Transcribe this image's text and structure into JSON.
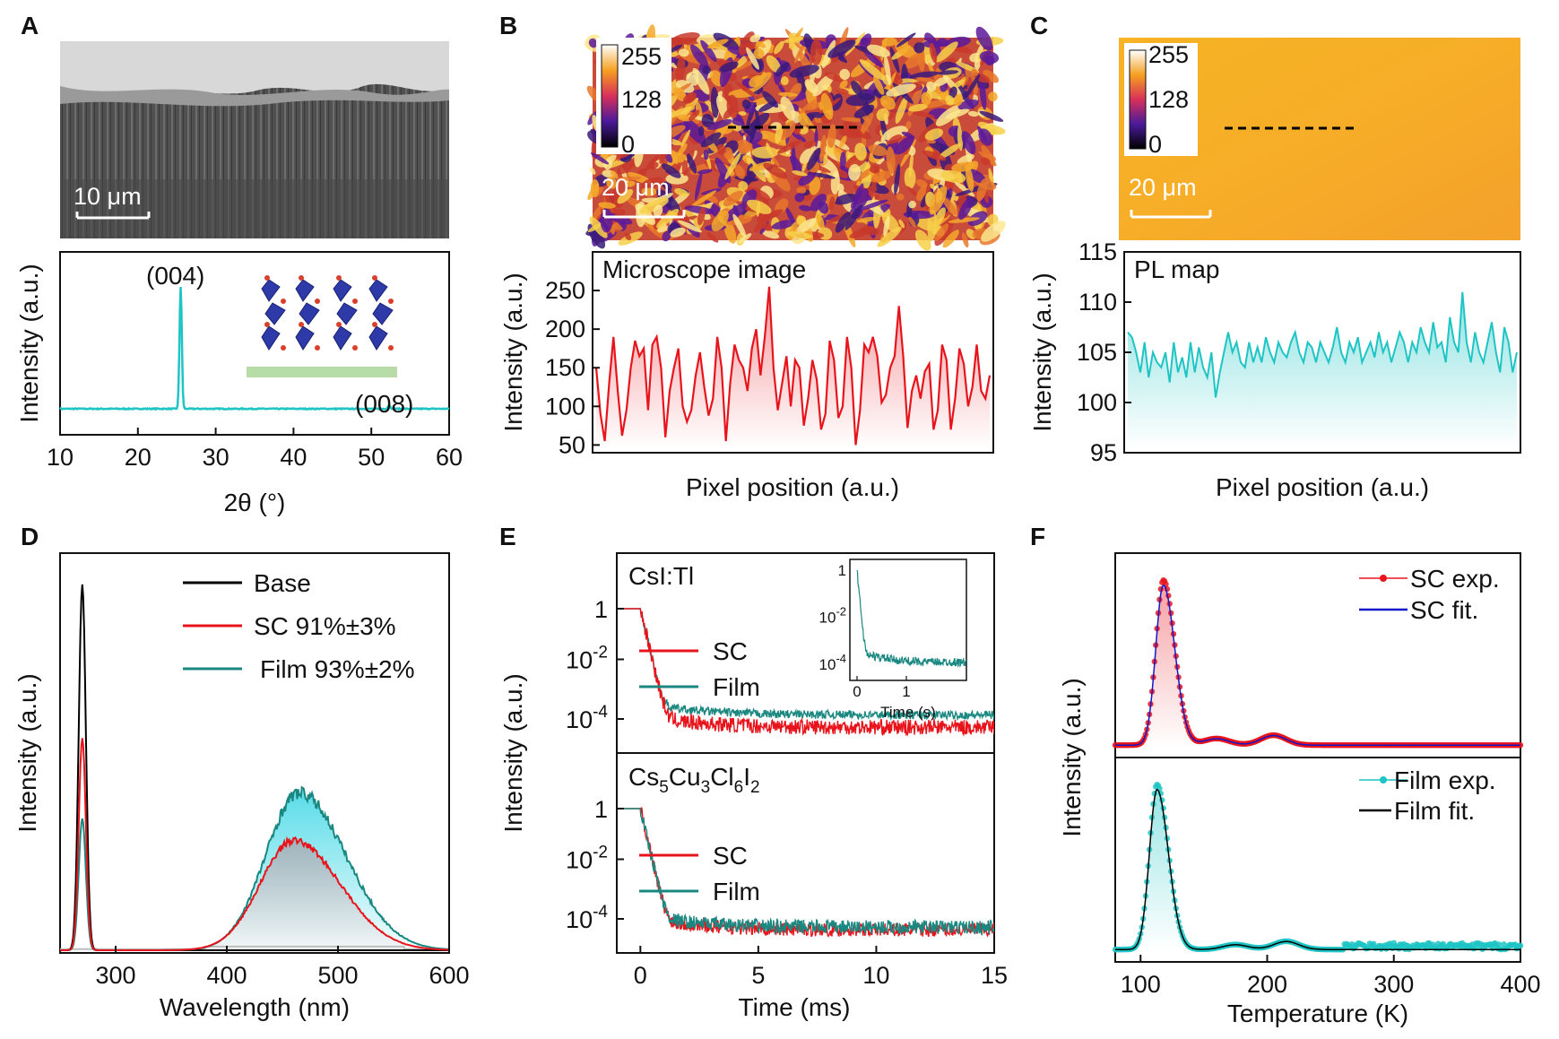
{
  "colors": {
    "cyan": "#1fc4c4",
    "red": "#e8141c",
    "teal": "#1a8880",
    "black": "#000000",
    "blue": "#1616c8",
    "gray": "#bdbdbd"
  },
  "chart_data": [
    {
      "id": "A",
      "panel_label": "A",
      "type": "line",
      "image": {
        "kind": "SEM cross-section",
        "scale_bar": "10 μm"
      },
      "inset": {
        "kind": "crystal-structure schematic"
      },
      "xlabel": "2θ (°)",
      "ylabel": "Intensity (a.u.)",
      "xlim": [
        10,
        60
      ],
      "xticks": [
        "10",
        "20",
        "30",
        "40",
        "50",
        "60"
      ],
      "peaks": [
        {
          "label": "(004)",
          "x": 25.5,
          "relative_height": 1.0
        },
        {
          "label": "(008)",
          "x": 52.3,
          "relative_height": 0.03
        }
      ],
      "series": [
        {
          "color": "#1fc4c4",
          "baseline": 0.0
        }
      ]
    },
    {
      "id": "B",
      "panel_label": "B",
      "type": "line",
      "image": {
        "kind": "microscope image (false color)",
        "scale_bar": "20 μm",
        "colorbar_ticks": [
          "255",
          "128",
          "0"
        ]
      },
      "annotation": "Microscope image",
      "xlabel": "Pixel position (a.u.)",
      "ylabel": "Intensity (a.u.)",
      "ylim": [
        40,
        300
      ],
      "yticks": [
        "50",
        "100",
        "150",
        "200",
        "250"
      ],
      "series": [
        {
          "color": "#e8141c",
          "values": [
            150,
            90,
            55,
            130,
            190,
            120,
            62,
            95,
            150,
            185,
            165,
            175,
            95,
            180,
            190,
            150,
            60,
            120,
            150,
            175,
            100,
            80,
            95,
            140,
            170,
            125,
            88,
            110,
            190,
            150,
            55,
            130,
            180,
            160,
            150,
            120,
            175,
            200,
            140,
            190,
            255,
            150,
            95,
            130,
            165,
            100,
            160,
            150,
            75,
            110,
            160,
            135,
            70,
            90,
            185,
            160,
            85,
            100,
            190,
            150,
            50,
            95,
            180,
            170,
            190,
            165,
            105,
            115,
            150,
            165,
            230,
            165,
            72,
            120,
            140,
            110,
            145,
            155,
            70,
            95,
            180,
            160,
            70,
            110,
            175,
            155,
            100,
            125,
            180,
            120,
            110,
            140
          ]
        }
      ]
    },
    {
      "id": "C",
      "panel_label": "C",
      "type": "line",
      "image": {
        "kind": "PL map (false color)",
        "scale_bar": "20 μm",
        "colorbar_ticks": [
          "255",
          "128",
          "0"
        ]
      },
      "annotation": "PL map",
      "xlabel": "Pixel position (a.u.)",
      "ylabel": "Intensity (a.u.)",
      "ylim": [
        95,
        115
      ],
      "yticks": [
        "95",
        "100",
        "105",
        "110",
        "115"
      ],
      "series": [
        {
          "color": "#1fc4c4",
          "values": [
            107,
            106.5,
            105,
            103,
            106,
            102.5,
            105,
            104,
            103.5,
            105,
            102,
            106,
            103,
            104.5,
            102.5,
            106,
            103,
            105.5,
            103.5,
            102.5,
            105,
            100.5,
            103,
            105,
            107,
            105,
            106,
            104,
            103.5,
            106,
            104,
            105.5,
            104,
            106.5,
            105,
            104,
            106,
            105,
            104.5,
            106,
            107,
            105,
            104,
            106,
            105.5,
            104,
            106,
            105,
            104,
            105.5,
            107.5,
            105,
            104,
            106,
            105,
            106.5,
            104,
            105,
            106,
            104.5,
            107,
            105,
            106,
            104,
            105.5,
            107,
            106,
            104,
            106,
            105,
            107.5,
            106,
            105,
            108,
            105.5,
            106,
            104,
            108.5,
            106,
            105,
            111,
            106,
            104,
            107,
            105,
            104,
            106,
            108,
            105,
            103,
            107.5,
            106,
            103,
            105
          ]
        }
      ]
    },
    {
      "id": "D",
      "panel_label": "D",
      "type": "line",
      "xlabel": "Wavelength (nm)",
      "ylabel": "Intensity (a.u.)",
      "xlim": [
        250,
        600
      ],
      "xticks": [
        "300",
        "400",
        "500",
        "600"
      ],
      "series": [
        {
          "name": "Base",
          "color": "#000000",
          "excitation_peak": {
            "x": 270,
            "height": 1.0
          }
        },
        {
          "name": "SC 91%±3%",
          "color": "#e8141c",
          "excitation_peak": {
            "x": 270,
            "height": 0.58
          },
          "emission_peak": {
            "x": 460,
            "height": 0.3
          }
        },
        {
          "name": "Film 93%±2%",
          "color": "#1a8880",
          "excitation_peak": {
            "x": 270,
            "height": 0.36
          },
          "emission_peak": {
            "x": 465,
            "height": 0.43
          }
        },
        {
          "color": "#bdbdbd",
          "baseline": 0.01
        }
      ]
    },
    {
      "id": "E",
      "panel_label": "E",
      "type": "line",
      "subplots": [
        {
          "annotation": "CsI:Tl",
          "yscale": "log",
          "yticks": [
            "1",
            "10-2",
            "10-4"
          ],
          "series": [
            {
              "name": "SC",
              "color": "#e8141c",
              "tail_level": 5e-05
            },
            {
              "name": "Film",
              "color": "#1a8880",
              "tail_level": 0.00014
            }
          ],
          "inset": {
            "xlabel": "Time (s)",
            "xticks": [
              "0",
              "1"
            ],
            "yticks": [
              "1",
              "10-2",
              "10-4"
            ]
          }
        },
        {
          "annotation_parts": [
            "Cs",
            "5",
            "Cu",
            "3",
            "Cl",
            "6",
            "I",
            "2"
          ],
          "yscale": "log",
          "yticks": [
            "1",
            "10-2",
            "10-4"
          ],
          "series": [
            {
              "name": "SC",
              "color": "#e8141c",
              "tail_level": 4e-05
            },
            {
              "name": "Film",
              "color": "#1a8880",
              "tail_level": 5e-05
            }
          ]
        }
      ],
      "xlabel": "Time (ms)",
      "ylabel": "Intensity (a.u.)",
      "xlim": [
        -1,
        15
      ],
      "xticks": [
        "0",
        "5",
        "10",
        "15"
      ]
    },
    {
      "id": "F",
      "panel_label": "F",
      "type": "line",
      "subplots": [
        {
          "series": [
            {
              "name": "SC exp.",
              "color": "#e8141c",
              "peaks": [
                {
                  "x": 118,
                  "height": 1.0
                },
                {
                  "x": 160,
                  "height": 0.04
                },
                {
                  "x": 205,
                  "height": 0.06
                }
              ]
            },
            {
              "name": "SC fit.",
              "color": "#1616c8"
            }
          ]
        },
        {
          "series": [
            {
              "name": "Film exp.",
              "color": "#1fc4c4",
              "peaks": [
                {
                  "x": 113,
                  "height": 1.0
                },
                {
                  "x": 175,
                  "height": 0.03
                },
                {
                  "x": 215,
                  "height": 0.05
                }
              ]
            },
            {
              "name": "Film fit.",
              "color": "#000000"
            }
          ]
        }
      ],
      "xlabel": "Temperature (K)",
      "ylabel": "Intensity (a.u.)",
      "xlim": [
        80,
        400
      ],
      "xticks": [
        "100",
        "200",
        "300",
        "400"
      ]
    }
  ]
}
